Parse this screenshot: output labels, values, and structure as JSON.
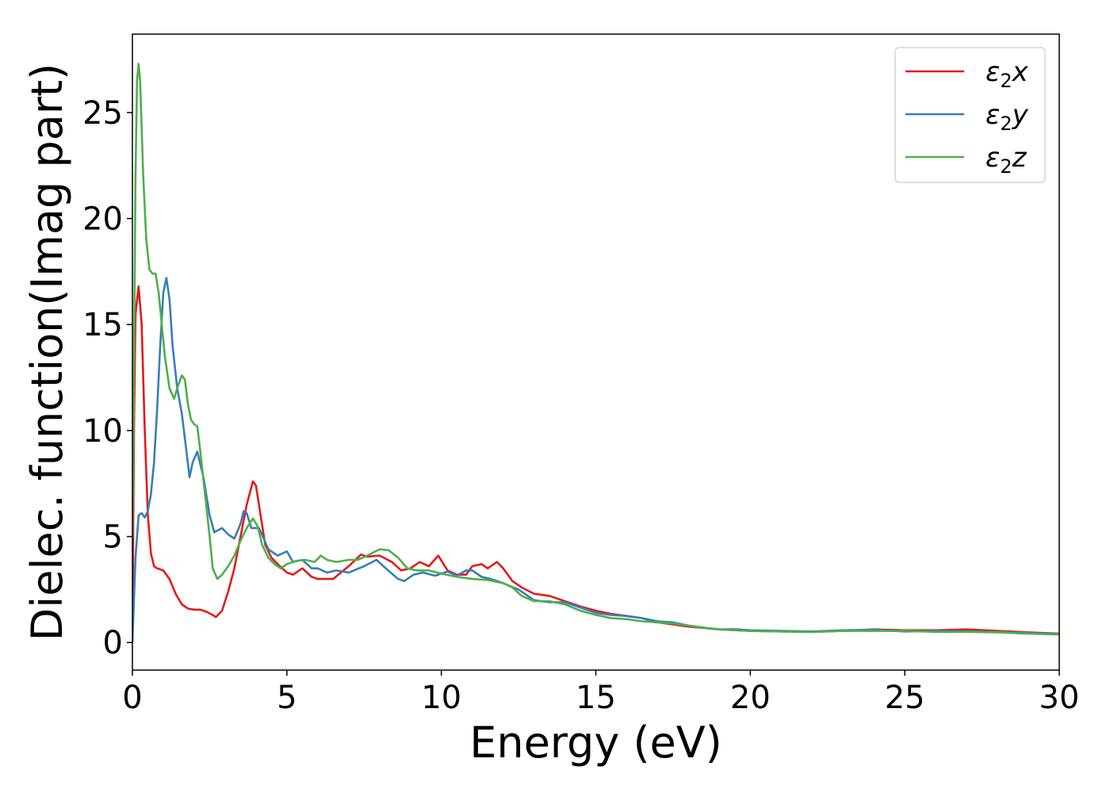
{
  "chart_data": {
    "type": "line",
    "title": "",
    "xlabel": "Energy (eV)",
    "ylabel": "Dielec. function(Imag part)",
    "xlim": [
      0,
      30
    ],
    "ylim": [
      -1.3,
      28.7
    ],
    "xticks": [
      0,
      5,
      10,
      15,
      20,
      25,
      30
    ],
    "yticks": [
      0,
      5,
      10,
      15,
      20,
      25
    ],
    "grid": false,
    "legend": "top-right",
    "series": [
      {
        "name": "ε₂x",
        "legend_main": "ε",
        "legend_sub": "2",
        "legend_tail": "x",
        "color": "#e41a1c",
        "points": [
          [
            0,
            0
          ],
          [
            0.05,
            10
          ],
          [
            0.1,
            15.5
          ],
          [
            0.2,
            16.8
          ],
          [
            0.3,
            15
          ],
          [
            0.4,
            10
          ],
          [
            0.5,
            6
          ],
          [
            0.6,
            4.2
          ],
          [
            0.7,
            3.6
          ],
          [
            0.8,
            3.5
          ],
          [
            1.0,
            3.4
          ],
          [
            1.2,
            3.0
          ],
          [
            1.4,
            2.3
          ],
          [
            1.6,
            1.8
          ],
          [
            1.8,
            1.6
          ],
          [
            2.0,
            1.55
          ],
          [
            2.2,
            1.55
          ],
          [
            2.4,
            1.45
          ],
          [
            2.6,
            1.3
          ],
          [
            2.7,
            1.2
          ],
          [
            2.9,
            1.5
          ],
          [
            3.1,
            2.4
          ],
          [
            3.3,
            3.5
          ],
          [
            3.5,
            5
          ],
          [
            3.7,
            6.5
          ],
          [
            3.9,
            7.6
          ],
          [
            4.0,
            7.4
          ],
          [
            4.15,
            6
          ],
          [
            4.3,
            4.6
          ],
          [
            4.5,
            4.0
          ],
          [
            4.7,
            3.7
          ],
          [
            5.0,
            3.3
          ],
          [
            5.2,
            3.2
          ],
          [
            5.5,
            3.5
          ],
          [
            5.8,
            3.1
          ],
          [
            6.0,
            3.0
          ],
          [
            6.5,
            3.0
          ],
          [
            7.0,
            3.6
          ],
          [
            7.4,
            4.15
          ],
          [
            7.6,
            4.05
          ],
          [
            8.0,
            4.1
          ],
          [
            8.4,
            3.8
          ],
          [
            8.7,
            3.4
          ],
          [
            9.0,
            3.5
          ],
          [
            9.3,
            3.8
          ],
          [
            9.6,
            3.6
          ],
          [
            9.9,
            4.1
          ],
          [
            10.2,
            3.4
          ],
          [
            10.5,
            3.2
          ],
          [
            10.8,
            3.2
          ],
          [
            11.0,
            3.6
          ],
          [
            11.3,
            3.7
          ],
          [
            11.5,
            3.5
          ],
          [
            11.8,
            3.8
          ],
          [
            12.0,
            3.5
          ],
          [
            12.3,
            2.9
          ],
          [
            12.6,
            2.6
          ],
          [
            13.0,
            2.3
          ],
          [
            13.5,
            2.2
          ],
          [
            14.0,
            1.95
          ],
          [
            14.5,
            1.7
          ],
          [
            15.0,
            1.5
          ],
          [
            15.5,
            1.35
          ],
          [
            16.0,
            1.25
          ],
          [
            16.5,
            1.15
          ],
          [
            17.0,
            0.95
          ],
          [
            17.5,
            0.85
          ],
          [
            18.0,
            0.75
          ],
          [
            19.0,
            0.62
          ],
          [
            20.0,
            0.55
          ],
          [
            21.0,
            0.52
          ],
          [
            22.0,
            0.5
          ],
          [
            23.0,
            0.55
          ],
          [
            24.0,
            0.62
          ],
          [
            25.0,
            0.58
          ],
          [
            26.0,
            0.58
          ],
          [
            27.0,
            0.62
          ],
          [
            28.0,
            0.55
          ],
          [
            29.0,
            0.48
          ],
          [
            30.0,
            0.42
          ]
        ]
      },
      {
        "name": "ε₂y",
        "legend_main": "ε",
        "legend_sub": "2",
        "legend_tail": "y",
        "color": "#377eb8",
        "points": [
          [
            0,
            0
          ],
          [
            0.1,
            4
          ],
          [
            0.2,
            6
          ],
          [
            0.3,
            6.1
          ],
          [
            0.4,
            5.9
          ],
          [
            0.5,
            6.2
          ],
          [
            0.6,
            7
          ],
          [
            0.7,
            8.5
          ],
          [
            0.8,
            11
          ],
          [
            0.9,
            14
          ],
          [
            1.0,
            16.5
          ],
          [
            1.1,
            17.2
          ],
          [
            1.2,
            16.2
          ],
          [
            1.3,
            14
          ],
          [
            1.45,
            12
          ],
          [
            1.6,
            10.8
          ],
          [
            1.75,
            9
          ],
          [
            1.85,
            7.8
          ],
          [
            1.95,
            8.5
          ],
          [
            2.1,
            9.0
          ],
          [
            2.3,
            7.8
          ],
          [
            2.5,
            6
          ],
          [
            2.65,
            5.2
          ],
          [
            2.9,
            5.4
          ],
          [
            3.1,
            5.1
          ],
          [
            3.3,
            4.9
          ],
          [
            3.5,
            5.6
          ],
          [
            3.6,
            6.2
          ],
          [
            3.7,
            6.1
          ],
          [
            3.85,
            5.4
          ],
          [
            4.1,
            5.4
          ],
          [
            4.4,
            4.4
          ],
          [
            4.7,
            4.1
          ],
          [
            5.0,
            4.3
          ],
          [
            5.2,
            3.8
          ],
          [
            5.5,
            3.9
          ],
          [
            5.8,
            3.5
          ],
          [
            6.0,
            3.5
          ],
          [
            6.3,
            3.3
          ],
          [
            6.6,
            3.4
          ],
          [
            7.0,
            3.3
          ],
          [
            7.5,
            3.6
          ],
          [
            7.9,
            3.9
          ],
          [
            8.2,
            3.5
          ],
          [
            8.6,
            3.0
          ],
          [
            8.8,
            2.9
          ],
          [
            9.1,
            3.2
          ],
          [
            9.4,
            3.3
          ],
          [
            9.8,
            3.15
          ],
          [
            10.2,
            3.35
          ],
          [
            10.5,
            3.15
          ],
          [
            10.8,
            3.4
          ],
          [
            11.0,
            3.4
          ],
          [
            11.3,
            3.1
          ],
          [
            11.6,
            3.0
          ],
          [
            12.0,
            2.8
          ],
          [
            12.5,
            2.5
          ],
          [
            13.0,
            2.0
          ],
          [
            13.5,
            1.9
          ],
          [
            14.0,
            1.9
          ],
          [
            14.5,
            1.65
          ],
          [
            15.0,
            1.4
          ],
          [
            15.5,
            1.3
          ],
          [
            16.0,
            1.25
          ],
          [
            16.5,
            1.15
          ],
          [
            17.0,
            1.0
          ],
          [
            17.5,
            0.95
          ],
          [
            18.0,
            0.8
          ],
          [
            18.5,
            0.7
          ],
          [
            19.0,
            0.62
          ],
          [
            19.5,
            0.63
          ],
          [
            20.0,
            0.58
          ],
          [
            21.0,
            0.55
          ],
          [
            22.0,
            0.52
          ],
          [
            23.0,
            0.58
          ],
          [
            24.0,
            0.6
          ],
          [
            25.0,
            0.52
          ],
          [
            26.0,
            0.55
          ],
          [
            27.0,
            0.52
          ],
          [
            28.0,
            0.5
          ],
          [
            29.0,
            0.45
          ],
          [
            30.0,
            0.4
          ]
        ]
      },
      {
        "name": "ε₂z",
        "legend_main": "ε",
        "legend_sub": "2",
        "legend_tail": "z",
        "color": "#4daf4a",
        "points": [
          [
            0,
            5
          ],
          [
            0.05,
            13
          ],
          [
            0.1,
            22
          ],
          [
            0.15,
            26.5
          ],
          [
            0.2,
            27.3
          ],
          [
            0.25,
            26.5
          ],
          [
            0.35,
            22
          ],
          [
            0.45,
            19
          ],
          [
            0.55,
            17.6
          ],
          [
            0.65,
            17.4
          ],
          [
            0.75,
            17.4
          ],
          [
            0.85,
            16.5
          ],
          [
            0.95,
            15
          ],
          [
            1.05,
            13.5
          ],
          [
            1.2,
            12
          ],
          [
            1.35,
            11.5
          ],
          [
            1.45,
            12
          ],
          [
            1.6,
            12.6
          ],
          [
            1.7,
            12.4
          ],
          [
            1.8,
            11.2
          ],
          [
            1.9,
            10.5
          ],
          [
            2.0,
            10.3
          ],
          [
            2.1,
            10.2
          ],
          [
            2.2,
            9.0
          ],
          [
            2.35,
            7.0
          ],
          [
            2.5,
            5.0
          ],
          [
            2.6,
            3.5
          ],
          [
            2.75,
            3.0
          ],
          [
            2.9,
            3.2
          ],
          [
            3.1,
            3.6
          ],
          [
            3.3,
            4.1
          ],
          [
            3.5,
            4.8
          ],
          [
            3.7,
            5.4
          ],
          [
            3.9,
            5.85
          ],
          [
            4.05,
            5.5
          ],
          [
            4.2,
            4.6
          ],
          [
            4.4,
            4.0
          ],
          [
            4.6,
            3.7
          ],
          [
            4.8,
            3.5
          ],
          [
            5.0,
            3.7
          ],
          [
            5.3,
            3.85
          ],
          [
            5.6,
            3.9
          ],
          [
            5.9,
            3.8
          ],
          [
            6.1,
            4.1
          ],
          [
            6.3,
            3.9
          ],
          [
            6.6,
            3.8
          ],
          [
            7.0,
            3.9
          ],
          [
            7.3,
            3.9
          ],
          [
            7.6,
            4.1
          ],
          [
            8.0,
            4.4
          ],
          [
            8.3,
            4.35
          ],
          [
            8.6,
            4.0
          ],
          [
            8.9,
            3.5
          ],
          [
            9.2,
            3.4
          ],
          [
            9.6,
            3.4
          ],
          [
            10.0,
            3.25
          ],
          [
            10.5,
            3.1
          ],
          [
            11.0,
            3.0
          ],
          [
            11.5,
            2.95
          ],
          [
            12.0,
            2.8
          ],
          [
            12.3,
            2.6
          ],
          [
            12.6,
            2.2
          ],
          [
            13.0,
            1.95
          ],
          [
            13.5,
            1.95
          ],
          [
            14.0,
            1.8
          ],
          [
            14.5,
            1.5
          ],
          [
            15.0,
            1.3
          ],
          [
            15.5,
            1.15
          ],
          [
            16.0,
            1.1
          ],
          [
            16.5,
            1.0
          ],
          [
            17.0,
            0.95
          ],
          [
            17.5,
            0.9
          ],
          [
            18.0,
            0.8
          ],
          [
            18.5,
            0.7
          ],
          [
            19.0,
            0.62
          ],
          [
            20.0,
            0.55
          ],
          [
            21.0,
            0.52
          ],
          [
            22.0,
            0.5
          ],
          [
            23.0,
            0.55
          ],
          [
            24.0,
            0.55
          ],
          [
            25.0,
            0.55
          ],
          [
            26.0,
            0.5
          ],
          [
            27.0,
            0.5
          ],
          [
            28.0,
            0.48
          ],
          [
            29.0,
            0.42
          ],
          [
            30.0,
            0.38
          ]
        ]
      }
    ]
  }
}
